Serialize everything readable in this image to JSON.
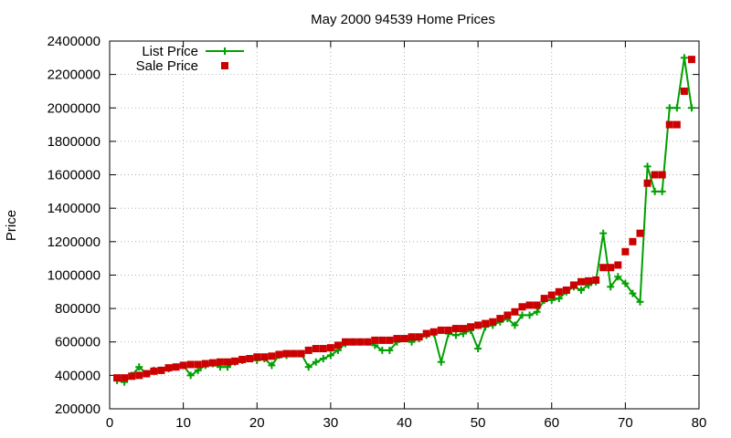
{
  "chart_data": {
    "type": "line",
    "title": "May 2000 94539 Home Prices",
    "xlabel": "",
    "ylabel": "Price",
    "xlim": [
      0,
      80
    ],
    "ylim": [
      200000,
      2400000
    ],
    "x_ticks": [
      0,
      10,
      20,
      30,
      40,
      50,
      60,
      70,
      80
    ],
    "y_ticks": [
      200000,
      400000,
      600000,
      800000,
      1000000,
      1200000,
      1400000,
      1600000,
      1800000,
      2000000,
      2200000,
      2400000
    ],
    "grid": true,
    "legend_position": "top-left",
    "series": [
      {
        "name": "List Price",
        "style": "line+plus",
        "color": "#00a000",
        "x": [
          1,
          2,
          3,
          4,
          5,
          6,
          7,
          8,
          9,
          10,
          11,
          12,
          13,
          14,
          15,
          16,
          17,
          18,
          19,
          20,
          21,
          22,
          23,
          24,
          25,
          26,
          27,
          28,
          29,
          30,
          31,
          32,
          33,
          34,
          35,
          36,
          37,
          38,
          39,
          40,
          41,
          42,
          43,
          44,
          45,
          46,
          47,
          48,
          49,
          50,
          51,
          52,
          53,
          54,
          55,
          56,
          57,
          58,
          59,
          60,
          61,
          62,
          63,
          64,
          65,
          66,
          67,
          68,
          69,
          70,
          71,
          72,
          73,
          74,
          75,
          76,
          77,
          78,
          79
        ],
        "y": [
          370000,
          360000,
          400000,
          450000,
          410000,
          430000,
          430000,
          440000,
          450000,
          460000,
          400000,
          430000,
          460000,
          470000,
          450000,
          450000,
          480000,
          490000,
          500000,
          490000,
          500000,
          460000,
          520000,
          520000,
          530000,
          530000,
          450000,
          480000,
          500000,
          520000,
          550000,
          590000,
          600000,
          600000,
          600000,
          580000,
          550000,
          550000,
          600000,
          620000,
          600000,
          620000,
          640000,
          650000,
          480000,
          650000,
          640000,
          650000,
          670000,
          560000,
          690000,
          700000,
          720000,
          740000,
          700000,
          760000,
          760000,
          780000,
          850000,
          850000,
          860000,
          900000,
          930000,
          910000,
          940000,
          960000,
          1250000,
          930000,
          990000,
          950000,
          890000,
          840000,
          1650000,
          1500000,
          1500000,
          2000000,
          2000000,
          2300000,
          2000000
        ]
      },
      {
        "name": "Sale Price",
        "style": "points-square",
        "color": "#cc0000",
        "x": [
          1,
          2,
          3,
          4,
          5,
          6,
          7,
          8,
          9,
          10,
          11,
          12,
          13,
          14,
          15,
          16,
          17,
          18,
          19,
          20,
          21,
          22,
          23,
          24,
          25,
          26,
          27,
          28,
          29,
          30,
          31,
          32,
          33,
          34,
          35,
          36,
          37,
          38,
          39,
          40,
          41,
          42,
          43,
          44,
          45,
          46,
          47,
          48,
          49,
          50,
          51,
          52,
          53,
          54,
          55,
          56,
          57,
          58,
          59,
          60,
          61,
          62,
          63,
          64,
          65,
          66,
          67,
          68,
          69,
          70,
          71,
          72,
          73,
          74,
          75,
          76,
          77,
          78,
          79
        ],
        "y": [
          385000,
          385000,
          395000,
          400000,
          410000,
          425000,
          430000,
          445000,
          450000,
          460000,
          465000,
          465000,
          470000,
          475000,
          480000,
          480000,
          485000,
          495000,
          500000,
          510000,
          510000,
          515000,
          525000,
          530000,
          530000,
          530000,
          550000,
          560000,
          560000,
          565000,
          580000,
          600000,
          600000,
          600000,
          600000,
          610000,
          610000,
          610000,
          620000,
          620000,
          630000,
          630000,
          650000,
          660000,
          670000,
          670000,
          680000,
          680000,
          690000,
          700000,
          710000,
          720000,
          740000,
          760000,
          780000,
          810000,
          820000,
          820000,
          860000,
          880000,
          900000,
          910000,
          940000,
          960000,
          965000,
          970000,
          1045000,
          1045000,
          1060000,
          1140000,
          1200000,
          1250000,
          1550000,
          1600000,
          1600000,
          1900000,
          1900000,
          2100000,
          2290000
        ]
      }
    ]
  }
}
